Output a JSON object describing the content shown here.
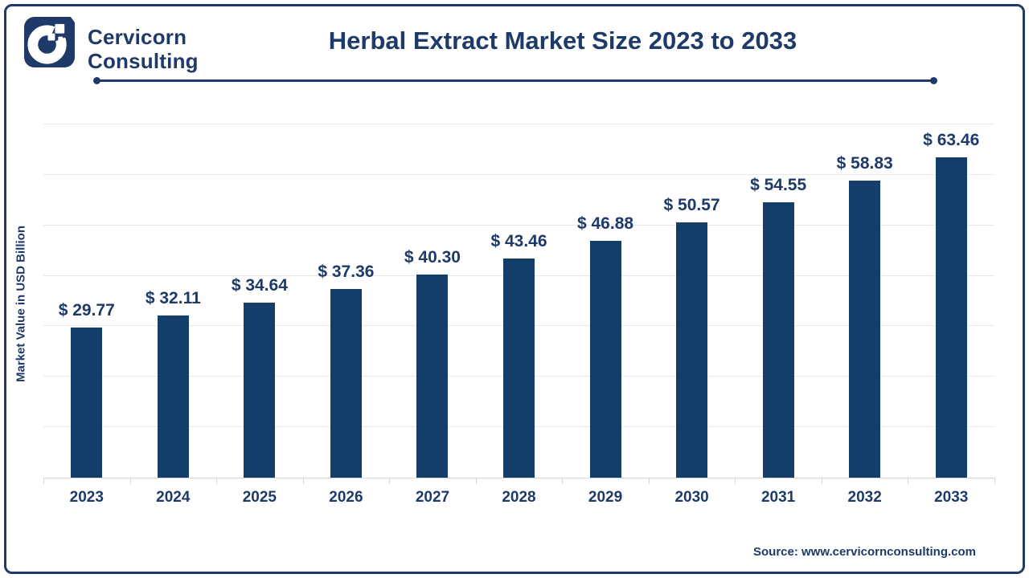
{
  "brand": {
    "name_line1": "Cervicorn",
    "name_line2": "Consulting",
    "logo_icon": "cervicorn-c-logo"
  },
  "header": {
    "title": "Herbal Extract Market Size 2023 to 2033"
  },
  "chart_data": {
    "type": "bar",
    "title": "Herbal Extract Market Size 2023 to 2033",
    "categories": [
      "2023",
      "2024",
      "2025",
      "2026",
      "2027",
      "2028",
      "2029",
      "2030",
      "2031",
      "2032",
      "2033"
    ],
    "values": [
      29.77,
      32.11,
      34.64,
      37.36,
      40.3,
      43.46,
      46.88,
      50.57,
      54.55,
      58.83,
      63.46
    ],
    "value_prefix": "$ ",
    "value_decimals": 2,
    "xlabel": "",
    "ylabel": "Market Value in USD Billion",
    "ylim": [
      0,
      70
    ],
    "gridline_step": 10,
    "grid": "horizontal-only",
    "y_tick_labels_shown": false,
    "legend": "none",
    "bar_color": "#133e6a",
    "text_color": "#1e3a68"
  },
  "footer": {
    "source": "Source: www.cervicornconsulting.com"
  },
  "colors": {
    "accent_navy": "#1e3a68",
    "bar_navy": "#133e6a",
    "gridline": "#e9e9e9",
    "axis": "#d6d6d6",
    "background": "#ffffff"
  }
}
